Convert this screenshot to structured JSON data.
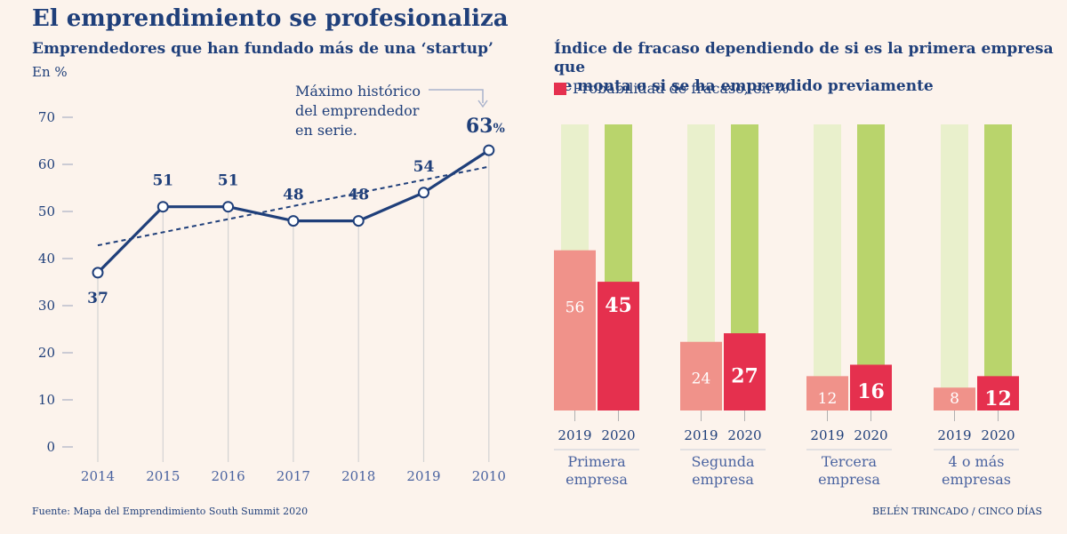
{
  "title": "El emprendimiento se profesionaliza",
  "left_chart": {
    "subtitle": "Emprendedores que han fundado más de una ‘startup’",
    "unit": "En %"
  },
  "right_chart": {
    "subtitle_line1": "Índice de fracaso dependiendo de si es la primera empresa que",
    "subtitle_line2": "se monta o si se ha emprendido previamente",
    "legend": "Probabilidad de fracaso, en %"
  },
  "annotation": {
    "lines": [
      "Máximo histórico",
      "del emprendedor",
      "en serie."
    ],
    "highlight_value": "63",
    "highlight_unit": "%"
  },
  "footer": {
    "source": "Fuente: Mapa del Emprendimiento South Summit 2020",
    "credit": "BELÉN TRINCADO / CINCO DÍAS"
  },
  "colors": {
    "navy": "#1f3f7a",
    "bar_2019": "#f0928a",
    "bar_2020": "#e5304e",
    "bg_2019": "#e9f0cc",
    "bg_2020": "#b9d46c"
  },
  "chart_data": [
    {
      "type": "line",
      "x": [
        "2014",
        "2015",
        "2016",
        "2017",
        "2018",
        "2019",
        "2010"
      ],
      "values": [
        37,
        51,
        51,
        48,
        48,
        54,
        63
      ],
      "data_labels": [
        "37",
        "51",
        "51",
        "48",
        "48",
        "54",
        "63"
      ],
      "trend": {
        "start": 42.8,
        "end": 59.5
      },
      "yticks": [
        0,
        10,
        20,
        30,
        40,
        50,
        60,
        70
      ],
      "ylim": [
        0,
        70
      ],
      "ylabel": "En %"
    },
    {
      "type": "bar",
      "categories": [
        {
          "line1": "Primera",
          "line2": "empresa"
        },
        {
          "line1": "Segunda",
          "line2": "empresa"
        },
        {
          "line1": "Tercera",
          "line2": "empresa"
        },
        {
          "line1": "4 o más",
          "line2": "empresas"
        }
      ],
      "sub_labels": [
        "2019",
        "2020"
      ],
      "series": [
        {
          "name": "2019",
          "values": [
            56,
            24,
            12,
            8
          ]
        },
        {
          "name": "2020",
          "values": [
            45,
            27,
            16,
            12
          ]
        }
      ],
      "ylim": [
        0,
        100
      ]
    }
  ]
}
